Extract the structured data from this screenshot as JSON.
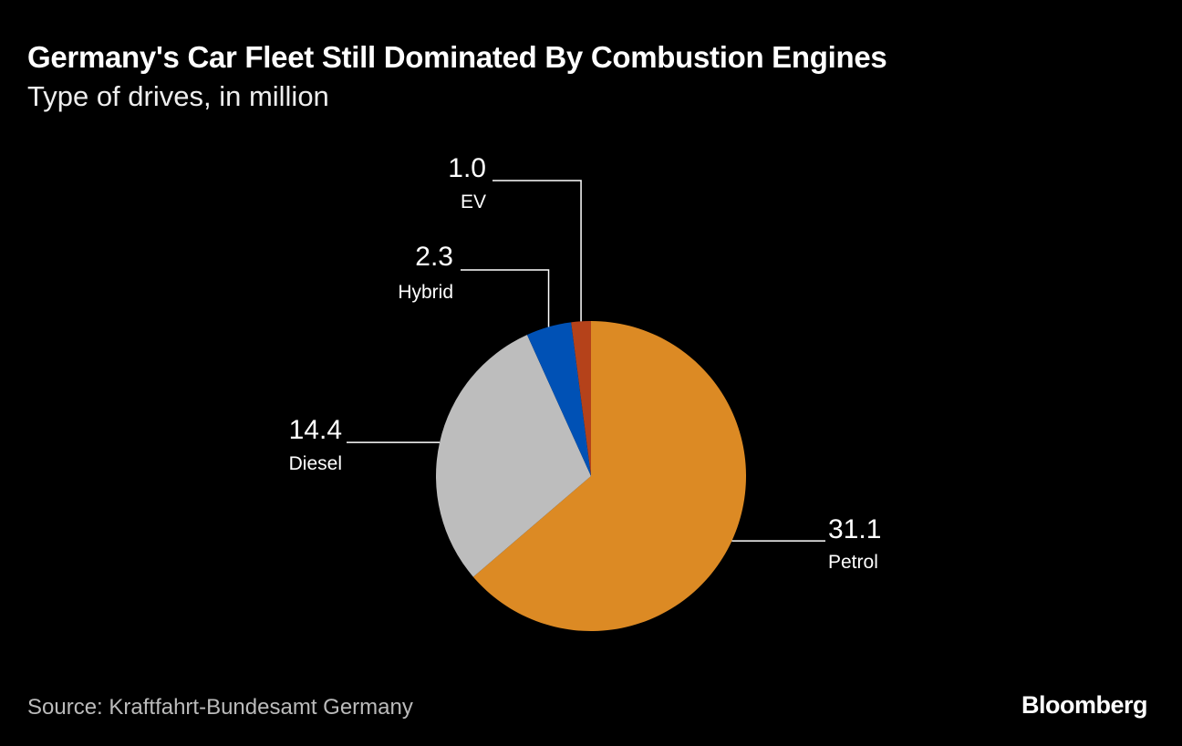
{
  "title": "Germany's Car Fleet Still Dominated By Combustion Engines",
  "subtitle": "Type of drives, in million",
  "source": "Source: Kraftfahrt-Bundesamt Germany",
  "logo": "Bloomberg",
  "chart_data": {
    "type": "pie",
    "title": "Germany's Car Fleet Still Dominated By Combustion Engines",
    "subtitle": "Type of drives, in million",
    "slices": [
      {
        "label": "Petrol",
        "value": 31.1,
        "display": "31.1",
        "color": "#dc8a24"
      },
      {
        "label": "Diesel",
        "value": 14.4,
        "display": "14.4",
        "color": "#bdbdbd"
      },
      {
        "label": "Hybrid",
        "value": 2.3,
        "display": "2.3",
        "color": "#0051b5"
      },
      {
        "label": "EV",
        "value": 1.0,
        "display": "1.0",
        "color": "#b5421a"
      }
    ],
    "start_angle": "top",
    "direction": "clockwise",
    "legend": "none"
  }
}
